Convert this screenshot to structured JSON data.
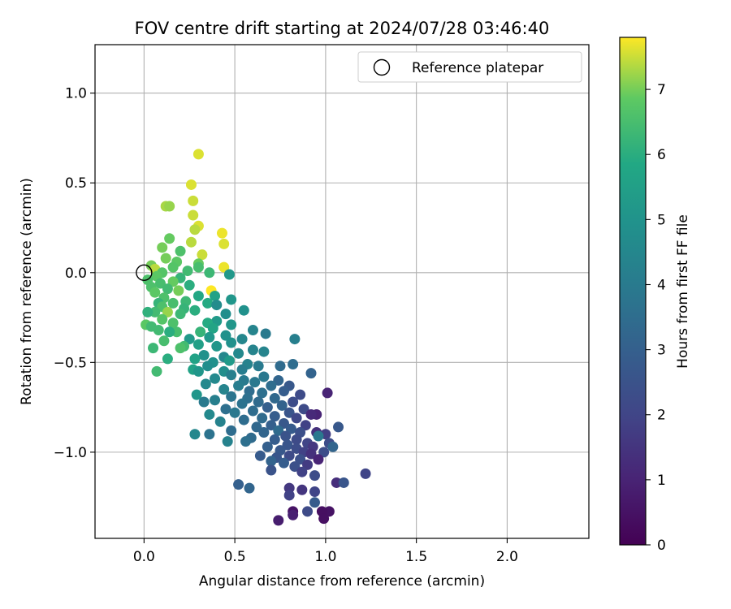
{
  "chart_data": {
    "type": "scatter",
    "title": "FOV centre drift starting at 2024/07/28 03:46:40",
    "xlabel": "Angular distance from reference (arcmin)",
    "ylabel": "Rotation from reference (arcmin)",
    "xlim": [
      -0.27,
      2.45
    ],
    "ylim": [
      -1.48,
      1.27
    ],
    "xticks": [
      0.0,
      0.5,
      1.0,
      1.5,
      2.0
    ],
    "xtick_labels": [
      "0.0",
      "0.5",
      "1.0",
      "1.5",
      "2.0"
    ],
    "yticks": [
      -1.0,
      -0.5,
      0.0,
      0.5,
      1.0
    ],
    "ytick_labels": [
      "−1.0",
      "−0.5",
      "0.0",
      "0.5",
      "1.0"
    ],
    "grid": true,
    "legend": {
      "position": "top-right",
      "entries": [
        {
          "label": "Reference platepar",
          "marker": "open-circle"
        }
      ]
    },
    "reference_point": {
      "x": 0.0,
      "y": 0.0
    },
    "colorbar": {
      "label": "Hours from first FF file",
      "colormap": "viridis",
      "range": [
        0,
        7.8
      ],
      "ticks": [
        0,
        1,
        2,
        3,
        4,
        5,
        6,
        7
      ],
      "tick_labels": [
        "0",
        "1",
        "2",
        "3",
        "4",
        "5",
        "6",
        "7"
      ]
    },
    "point_columns": [
      "x",
      "y",
      "hours"
    ],
    "points": [
      [
        0.3,
        0.66,
        7.6
      ],
      [
        0.26,
        0.49,
        7.6
      ],
      [
        0.27,
        0.4,
        7.5
      ],
      [
        0.12,
        0.37,
        7.3
      ],
      [
        0.14,
        0.37,
        7.2
      ],
      [
        0.27,
        0.32,
        7.5
      ],
      [
        0.3,
        0.26,
        7.6
      ],
      [
        0.28,
        0.24,
        7.4
      ],
      [
        0.43,
        0.22,
        7.7
      ],
      [
        0.14,
        0.19,
        6.9
      ],
      [
        0.26,
        0.17,
        7.4
      ],
      [
        0.44,
        0.16,
        7.6
      ],
      [
        0.1,
        0.14,
        7.0
      ],
      [
        0.2,
        0.12,
        6.6
      ],
      [
        0.32,
        0.1,
        7.5
      ],
      [
        0.12,
        0.08,
        7.0
      ],
      [
        0.18,
        0.06,
        6.8
      ],
      [
        0.3,
        0.05,
        6.9
      ],
      [
        0.44,
        0.03,
        7.7
      ],
      [
        0.04,
        0.04,
        7.0
      ],
      [
        0.06,
        0.02,
        7.4
      ],
      [
        0.16,
        0.03,
        6.7
      ],
      [
        0.24,
        0.01,
        6.4
      ],
      [
        0.3,
        0.03,
        6.5
      ],
      [
        0.1,
        0.0,
        6.7
      ],
      [
        0.36,
        0.0,
        6.3
      ],
      [
        0.47,
        -0.01,
        5.2
      ],
      [
        0.07,
        -0.02,
        6.8
      ],
      [
        0.2,
        -0.03,
        6.2
      ],
      [
        0.16,
        -0.05,
        6.9
      ],
      [
        0.02,
        -0.04,
        6.6
      ],
      [
        0.09,
        -0.06,
        6.5
      ],
      [
        0.25,
        -0.07,
        6.0
      ],
      [
        0.04,
        -0.08,
        6.6
      ],
      [
        0.13,
        -0.09,
        6.4
      ],
      [
        0.37,
        -0.1,
        7.8
      ],
      [
        0.19,
        -0.1,
        7.0
      ],
      [
        0.06,
        -0.11,
        6.8
      ],
      [
        0.39,
        -0.13,
        5.6
      ],
      [
        0.3,
        -0.13,
        5.8
      ],
      [
        0.11,
        -0.14,
        6.6
      ],
      [
        0.48,
        -0.15,
        5.1
      ],
      [
        0.23,
        -0.16,
        6.3
      ],
      [
        0.08,
        -0.17,
        6.2
      ],
      [
        0.16,
        -0.17,
        6.5
      ],
      [
        0.35,
        -0.17,
        5.9
      ],
      [
        0.4,
        -0.18,
        4.7
      ],
      [
        0.1,
        -0.19,
        6.6
      ],
      [
        0.22,
        -0.2,
        6.2
      ],
      [
        0.28,
        -0.21,
        6.0
      ],
      [
        0.06,
        -0.22,
        6.4
      ],
      [
        0.13,
        -0.22,
        7.2
      ],
      [
        0.02,
        -0.22,
        6.1
      ],
      [
        0.2,
        -0.23,
        6.3
      ],
      [
        0.55,
        -0.21,
        4.9
      ],
      [
        0.45,
        -0.23,
        4.8
      ],
      [
        0.1,
        -0.26,
        6.7
      ],
      [
        0.4,
        -0.27,
        5.3
      ],
      [
        0.35,
        -0.28,
        5.9
      ],
      [
        0.16,
        -0.28,
        6.6
      ],
      [
        0.48,
        -0.29,
        5.1
      ],
      [
        0.01,
        -0.29,
        6.8
      ],
      [
        0.04,
        -0.3,
        6.4
      ],
      [
        0.38,
        -0.31,
        5.7
      ],
      [
        0.6,
        -0.32,
        4.4
      ],
      [
        0.08,
        -0.32,
        6.4
      ],
      [
        0.18,
        -0.33,
        6.5
      ],
      [
        0.31,
        -0.33,
        6.2
      ],
      [
        0.14,
        -0.33,
        6.0
      ],
      [
        0.45,
        -0.35,
        4.9
      ],
      [
        0.67,
        -0.34,
        4.0
      ],
      [
        0.36,
        -0.36,
        5.2
      ],
      [
        0.54,
        -0.37,
        4.5
      ],
      [
        0.25,
        -0.37,
        5.3
      ],
      [
        0.83,
        -0.37,
        4.2
      ],
      [
        0.11,
        -0.38,
        6.5
      ],
      [
        0.48,
        -0.39,
        4.9
      ],
      [
        0.3,
        -0.4,
        5.5
      ],
      [
        0.4,
        -0.41,
        5.1
      ],
      [
        0.22,
        -0.41,
        6.4
      ],
      [
        0.05,
        -0.42,
        6.3
      ],
      [
        0.2,
        -0.42,
        6.6
      ],
      [
        0.6,
        -0.43,
        4.4
      ],
      [
        0.52,
        -0.45,
        4.6
      ],
      [
        0.66,
        -0.44,
        4.4
      ],
      [
        0.33,
        -0.46,
        4.9
      ],
      [
        0.44,
        -0.47,
        4.5
      ],
      [
        0.28,
        -0.48,
        5.6
      ],
      [
        0.13,
        -0.48,
        6.0
      ],
      [
        0.47,
        -0.49,
        5.3
      ],
      [
        0.38,
        -0.5,
        4.9
      ],
      [
        0.57,
        -0.51,
        4.3
      ],
      [
        0.63,
        -0.52,
        4.0
      ],
      [
        0.35,
        -0.52,
        4.8
      ],
      [
        0.75,
        -0.52,
        3.4
      ],
      [
        0.82,
        -0.51,
        3.5
      ],
      [
        0.54,
        -0.54,
        4.1
      ],
      [
        0.27,
        -0.54,
        5.6
      ],
      [
        0.3,
        -0.55,
        5.1
      ],
      [
        0.44,
        -0.55,
        4.8
      ],
      [
        0.07,
        -0.55,
        6.4
      ],
      [
        0.92,
        -0.56,
        3.1
      ],
      [
        0.48,
        -0.57,
        4.2
      ],
      [
        0.66,
        -0.58,
        3.9
      ],
      [
        0.39,
        -0.59,
        4.6
      ],
      [
        0.55,
        -0.6,
        4.0
      ],
      [
        0.74,
        -0.6,
        3.2
      ],
      [
        0.61,
        -0.61,
        3.9
      ],
      [
        0.34,
        -0.62,
        4.6
      ],
      [
        0.7,
        -0.63,
        3.5
      ],
      [
        0.8,
        -0.63,
        2.7
      ],
      [
        0.52,
        -0.63,
        4.1
      ],
      [
        0.44,
        -0.65,
        4.4
      ],
      [
        0.58,
        -0.66,
        3.5
      ],
      [
        0.77,
        -0.66,
        2.9
      ],
      [
        0.65,
        -0.67,
        3.6
      ],
      [
        1.01,
        -0.67,
        1.0
      ],
      [
        0.29,
        -0.68,
        5.1
      ],
      [
        0.86,
        -0.68,
        2.2
      ],
      [
        0.48,
        -0.69,
        3.8
      ],
      [
        0.57,
        -0.7,
        3.6
      ],
      [
        0.72,
        -0.7,
        3.3
      ],
      [
        0.39,
        -0.71,
        4.2
      ],
      [
        0.33,
        -0.72,
        4.0
      ],
      [
        0.63,
        -0.72,
        3.4
      ],
      [
        0.82,
        -0.72,
        2.3
      ],
      [
        0.54,
        -0.73,
        3.7
      ],
      [
        0.76,
        -0.74,
        3.1
      ],
      [
        0.68,
        -0.75,
        3.0
      ],
      [
        0.45,
        -0.76,
        3.6
      ],
      [
        0.88,
        -0.76,
        2.2
      ],
      [
        0.6,
        -0.77,
        3.5
      ],
      [
        0.8,
        -0.78,
        2.6
      ],
      [
        0.5,
        -0.78,
        3.9
      ],
      [
        0.95,
        -0.79,
        1.0
      ],
      [
        0.92,
        -0.79,
        1.2
      ],
      [
        0.36,
        -0.79,
        4.6
      ],
      [
        0.72,
        -0.8,
        2.9
      ],
      [
        0.65,
        -0.81,
        3.4
      ],
      [
        0.84,
        -0.81,
        2.1
      ],
      [
        0.55,
        -0.82,
        3.5
      ],
      [
        0.42,
        -0.83,
        4.3
      ],
      [
        0.77,
        -0.84,
        2.7
      ],
      [
        0.7,
        -0.85,
        3.0
      ],
      [
        0.89,
        -0.85,
        1.9
      ],
      [
        0.62,
        -0.86,
        3.3
      ],
      [
        1.07,
        -0.86,
        2.7
      ],
      [
        0.81,
        -0.87,
        2.8
      ],
      [
        0.74,
        -0.88,
        3.4
      ],
      [
        0.48,
        -0.88,
        3.5
      ],
      [
        0.95,
        -0.89,
        1.4
      ],
      [
        0.66,
        -0.89,
        3.2
      ],
      [
        0.86,
        -0.89,
        2.4
      ],
      [
        1.0,
        -0.9,
        1.8
      ],
      [
        0.28,
        -0.9,
        4.5
      ],
      [
        0.36,
        -0.9,
        3.7
      ],
      [
        0.78,
        -0.91,
        2.5
      ],
      [
        0.59,
        -0.92,
        3.4
      ],
      [
        0.96,
        -0.91,
        3.9
      ],
      [
        0.72,
        -0.93,
        2.9
      ],
      [
        0.84,
        -0.93,
        2.2
      ],
      [
        0.56,
        -0.94,
        3.6
      ],
      [
        0.46,
        -0.94,
        4.3
      ],
      [
        0.9,
        -0.95,
        2.0
      ],
      [
        1.02,
        -0.95,
        2.3
      ],
      [
        0.79,
        -0.96,
        2.6
      ],
      [
        0.93,
        -0.97,
        1.6
      ],
      [
        0.68,
        -0.97,
        3.0
      ],
      [
        1.04,
        -0.97,
        3.2
      ],
      [
        0.84,
        -0.98,
        2.3
      ],
      [
        0.75,
        -0.99,
        2.7
      ],
      [
        0.88,
        -1.0,
        1.9
      ],
      [
        0.99,
        -1.0,
        2.3
      ],
      [
        0.92,
        -1.01,
        1.4
      ],
      [
        0.64,
        -1.02,
        2.8
      ],
      [
        0.8,
        -1.02,
        2.2
      ],
      [
        0.73,
        -1.03,
        2.6
      ],
      [
        0.86,
        -1.04,
        2.4
      ],
      [
        0.96,
        -1.04,
        1.0
      ],
      [
        0.7,
        -1.05,
        3.1
      ],
      [
        0.77,
        -1.06,
        2.9
      ],
      [
        0.9,
        -1.07,
        1.7
      ],
      [
        0.83,
        -1.08,
        2.4
      ],
      [
        0.7,
        -1.1,
        2.5
      ],
      [
        0.87,
        -1.11,
        1.9
      ],
      [
        1.22,
        -1.12,
        2.0
      ],
      [
        0.94,
        -1.13,
        2.3
      ],
      [
        1.06,
        -1.17,
        1.3
      ],
      [
        1.1,
        -1.17,
        2.6
      ],
      [
        0.52,
        -1.18,
        3.0
      ],
      [
        0.58,
        -1.2,
        3.2
      ],
      [
        0.8,
        -1.2,
        1.6
      ],
      [
        0.87,
        -1.21,
        1.5
      ],
      [
        0.94,
        -1.22,
        2.0
      ],
      [
        0.8,
        -1.24,
        1.9
      ],
      [
        0.94,
        -1.28,
        2.8
      ],
      [
        1.02,
        -1.33,
        0.5
      ],
      [
        0.98,
        -1.33,
        0.4
      ],
      [
        0.9,
        -1.33,
        2.2
      ],
      [
        0.82,
        -1.33,
        0.5
      ],
      [
        0.82,
        -1.35,
        0.9
      ],
      [
        0.99,
        -1.37,
        0.4
      ],
      [
        0.74,
        -1.38,
        0.8
      ]
    ]
  }
}
